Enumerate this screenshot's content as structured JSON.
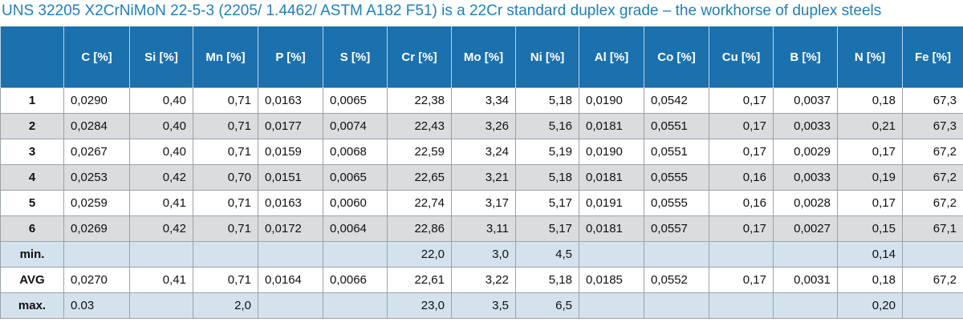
{
  "caption": "UNS 32205 X2CrNiMoN 22-5-3 (2205/ 1.4462/ ASTM A182 F51) is a 22Cr standard duplex grade – the workhorse of duplex steels",
  "table": {
    "headers": [
      "",
      "C [%]",
      "Si [%]",
      "Mn [%]",
      "P [%]",
      "S [%]",
      "Cr [%]",
      "Mo [%]",
      "Ni [%]",
      "Al [%]",
      "Co [%]",
      "Cu [%]",
      "B [%]",
      "N [%]",
      "Fe [%]"
    ],
    "rows": [
      {
        "label": "1",
        "values": [
          "0,0290",
          "0,40",
          "0,71",
          "0,0163",
          "0,0065",
          "22,38",
          "3,34",
          "5,18",
          "0,0190",
          "0,0542",
          "0,17",
          "0,0037",
          "0,18",
          "67,3"
        ]
      },
      {
        "label": "2",
        "values": [
          "0,0284",
          "0,40",
          "0,71",
          "0,0177",
          "0,0074",
          "22,43",
          "3,26",
          "5,16",
          "0,0181",
          "0,0551",
          "0,17",
          "0,0033",
          "0,21",
          "67,3"
        ]
      },
      {
        "label": "3",
        "values": [
          "0,0267",
          "0,40",
          "0,71",
          "0,0159",
          "0,0068",
          "22,59",
          "3,24",
          "5,19",
          "0,0190",
          "0,0551",
          "0,17",
          "0,0029",
          "0,17",
          "67,2"
        ]
      },
      {
        "label": "4",
        "values": [
          "0,0253",
          "0,42",
          "0,70",
          "0,0151",
          "0,0065",
          "22,65",
          "3,21",
          "5,18",
          "0,0181",
          "0,0555",
          "0,16",
          "0,0033",
          "0,19",
          "67,2"
        ]
      },
      {
        "label": "5",
        "values": [
          "0,0259",
          "0,41",
          "0,71",
          "0,0163",
          "0,0060",
          "22,74",
          "3,17",
          "5,17",
          "0,0191",
          "0,0555",
          "0,16",
          "0,0028",
          "0,17",
          "67,2"
        ]
      },
      {
        "label": "6",
        "values": [
          "0,0269",
          "0,42",
          "0,71",
          "0,0172",
          "0,0064",
          "22,86",
          "3,11",
          "5,17",
          "0,0181",
          "0,0557",
          "0,17",
          "0,0027",
          "0,15",
          "67,1"
        ]
      },
      {
        "label": "min.",
        "values": [
          "",
          "",
          "",
          "",
          "",
          "22,0",
          "3,0",
          "4,5",
          "",
          "",
          "",
          "",
          "0,14",
          ""
        ]
      },
      {
        "label": "AVG",
        "values": [
          "0,0270",
          "0,41",
          "0,71",
          "0,0164",
          "0,0066",
          "22,61",
          "3,22",
          "5,18",
          "0,0185",
          "0,0552",
          "0,17",
          "0,0031",
          "0,18",
          "67,2"
        ]
      },
      {
        "label": "max.",
        "values": [
          "0.03",
          "",
          "2,0",
          "",
          "",
          "23,0",
          "3,5",
          "6,5",
          "",
          "",
          "",
          "",
          "0,20",
          ""
        ]
      }
    ]
  },
  "colors": {
    "caption": "#1f7fb8",
    "header_bg": "#1b71ad",
    "row_grey": "#dadcde",
    "row_blue": "#d3e2ec"
  }
}
